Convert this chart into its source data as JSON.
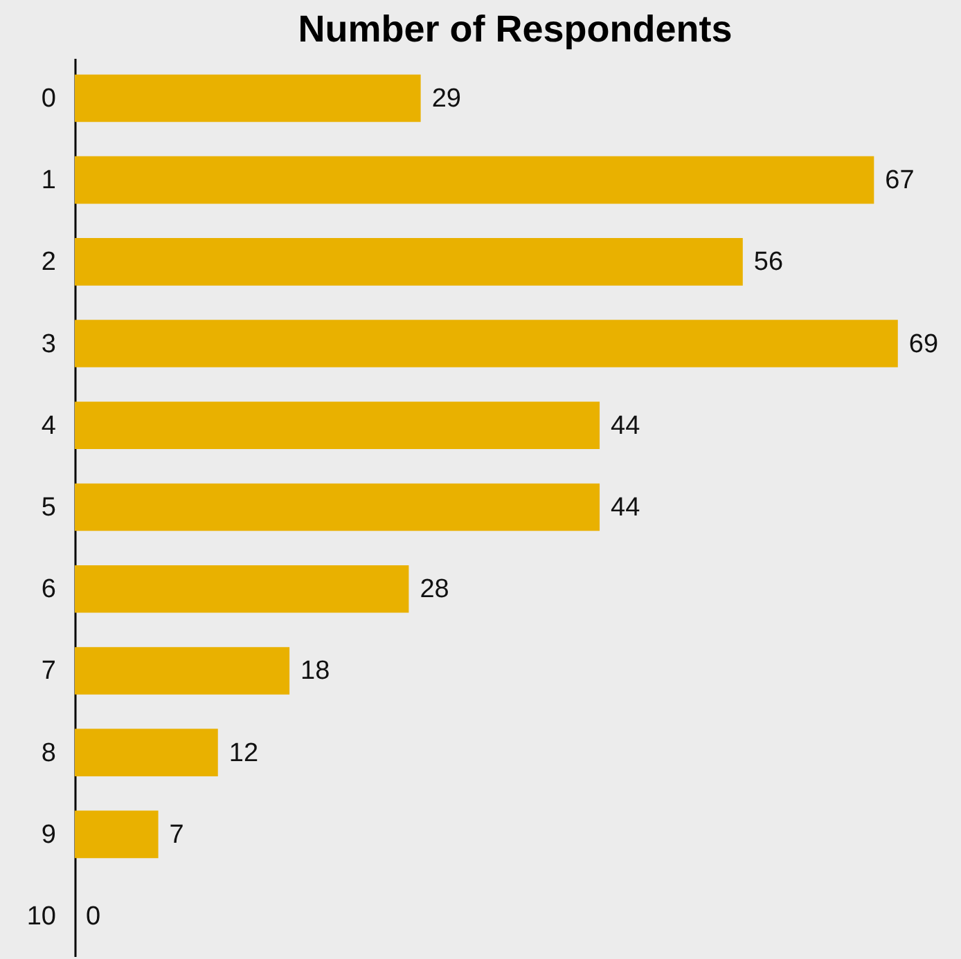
{
  "chart_data": {
    "type": "bar",
    "orientation": "horizontal",
    "title": "Number of Respondents",
    "categories": [
      "0",
      "1",
      "2",
      "3",
      "4",
      "5",
      "6",
      "7",
      "8",
      "9",
      "10"
    ],
    "values": [
      29,
      67,
      56,
      69,
      44,
      44,
      28,
      18,
      12,
      7,
      0
    ],
    "color": "#e9b100",
    "data_labels": true
  }
}
